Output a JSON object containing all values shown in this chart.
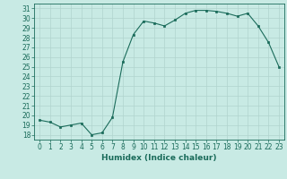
{
  "x": [
    0,
    1,
    2,
    3,
    4,
    5,
    6,
    7,
    8,
    9,
    10,
    11,
    12,
    13,
    14,
    15,
    16,
    17,
    18,
    19,
    20,
    21,
    22,
    23
  ],
  "y": [
    19.5,
    19.3,
    18.8,
    19.0,
    19.2,
    18.0,
    18.2,
    19.8,
    25.5,
    28.3,
    29.7,
    29.5,
    29.2,
    29.8,
    30.5,
    30.8,
    30.8,
    30.7,
    30.5,
    30.2,
    30.5,
    29.2,
    27.5,
    25.0
  ],
  "xlabel": "Humidex (Indice chaleur)",
  "ylim": [
    17.5,
    31.5
  ],
  "xlim": [
    -0.5,
    23.5
  ],
  "yticks": [
    18,
    19,
    20,
    21,
    22,
    23,
    24,
    25,
    26,
    27,
    28,
    29,
    30,
    31
  ],
  "xticks": [
    0,
    1,
    2,
    3,
    4,
    5,
    6,
    7,
    8,
    9,
    10,
    11,
    12,
    13,
    14,
    15,
    16,
    17,
    18,
    19,
    20,
    21,
    22,
    23
  ],
  "line_color": "#1a6b5a",
  "marker_color": "#1a6b5a",
  "bg_color": "#c8eae4",
  "grid_color": "#b0d4ce",
  "axis_color": "#1a6b5a",
  "tick_fontsize": 5.5,
  "xlabel_fontsize": 6.5
}
